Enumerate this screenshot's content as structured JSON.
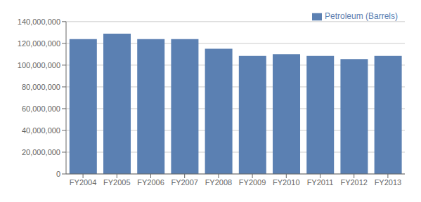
{
  "chart_data": {
    "type": "bar",
    "categories": [
      "FY2004",
      "FY2005",
      "FY2006",
      "FY2007",
      "FY2008",
      "FY2009",
      "FY2010",
      "FY2011",
      "FY2012",
      "FY2013"
    ],
    "series": [
      {
        "name": "Petroleum (Barrels)",
        "color": "#5b80b2",
        "values": [
          124000000,
          129000000,
          124000000,
          124000000,
          115000000,
          108500000,
          110000000,
          108500000,
          105500000,
          108500000
        ]
      }
    ],
    "ylim": [
      0,
      140000000
    ],
    "yticks": [
      0,
      {
        "value": 20000000,
        "label": "20,000,000"
      },
      {
        "value": 40000000,
        "label": "40,000,000"
      },
      {
        "value": 60000000,
        "label": "60,000,000"
      },
      {
        "value": 80000000,
        "label": "80,000,000"
      },
      {
        "value": 100000000,
        "label": "100,000,000"
      },
      {
        "value": 120000000,
        "label": "120,000,000"
      },
      {
        "value": 140000000,
        "label": "140,000,000"
      }
    ],
    "grid": true,
    "legend": "upper right"
  }
}
